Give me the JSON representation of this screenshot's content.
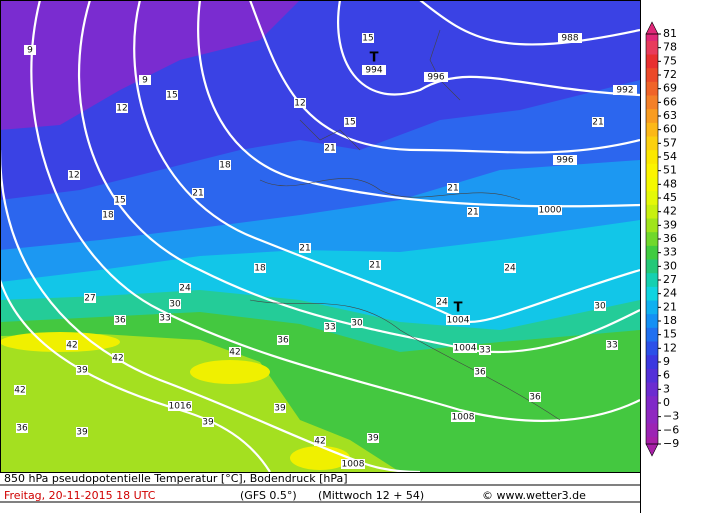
{
  "map": {
    "isobar_labels": [
      "988",
      "992",
      "994",
      "996",
      "996",
      "1000",
      "1004",
      "1004",
      "1008",
      "1016",
      "1008"
    ],
    "low_marks": [
      "T",
      "T"
    ],
    "contour_labels": [
      "9",
      "9",
      "12",
      "15",
      "15",
      "12",
      "15",
      "21",
      "18",
      "21",
      "21",
      "21",
      "21",
      "21",
      "18",
      "24",
      "27",
      "30",
      "33",
      "36",
      "42",
      "42",
      "39",
      "42",
      "36",
      "33",
      "30",
      "24",
      "33",
      "36",
      "36",
      "42",
      "39",
      "39",
      "42",
      "39",
      "36",
      "39",
      "33",
      "30",
      "18",
      "15",
      "21",
      "24",
      "12"
    ]
  },
  "colorbar": {
    "labels": [
      "81",
      "78",
      "75",
      "72",
      "69",
      "66",
      "63",
      "60",
      "57",
      "54",
      "51",
      "48",
      "45",
      "42",
      "39",
      "36",
      "33",
      "30",
      "27",
      "24",
      "21",
      "18",
      "15",
      "12",
      "9",
      "6",
      "3",
      "0",
      "−3",
      "−6",
      "−9"
    ],
    "colors": [
      "#e02878",
      "#e83c5c",
      "#e83030",
      "#ec4a2a",
      "#f06428",
      "#f48028",
      "#f89c20",
      "#fcb818",
      "#fcd010",
      "#fce800",
      "#fcf400",
      "#f4f800",
      "#e4f808",
      "#c8f010",
      "#a0e41c",
      "#70d82c",
      "#40cc40",
      "#24c878",
      "#14d0b0",
      "#10d4e0",
      "#10b0f0",
      "#1490f4",
      "#2070f0",
      "#2c50e8",
      "#3c38e0",
      "#5430d8",
      "#6c2cd0",
      "#8028c8",
      "#9028c0",
      "#9c24b4",
      "#a820a8"
    ]
  },
  "footer": {
    "line1": "850 hPa pseudopotentielle Temperatur [°C], Bodendruck [hPa]",
    "date": "Freitag, 20-11-2015   18 UTC",
    "model": "(GFS 0.5°)",
    "run": "(Mittwoch 12 + 54)",
    "credit": "© www.wetter3.de"
  }
}
